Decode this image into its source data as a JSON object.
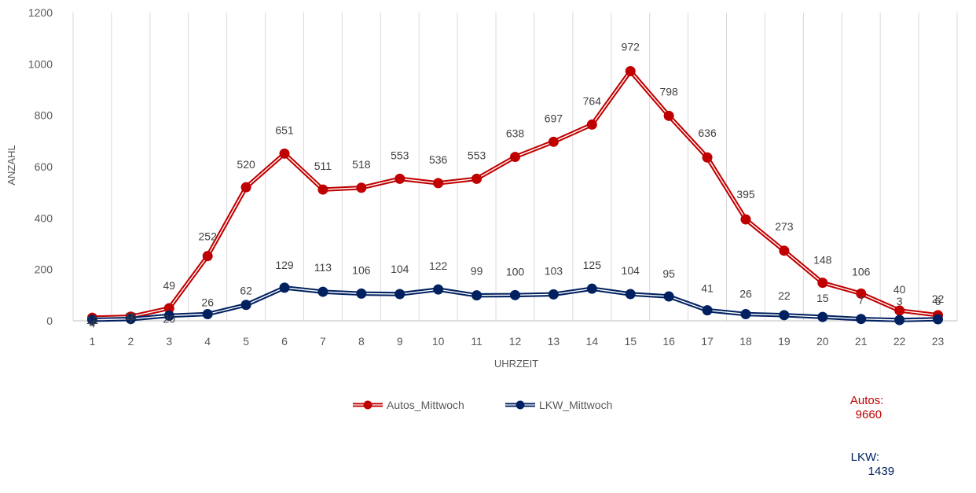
{
  "chart_data": {
    "type": "line",
    "title": "",
    "xlabel": "UHRZEIT",
    "ylabel": "ANZAHL",
    "ylim": [
      0,
      1200
    ],
    "yticks": [
      0,
      200,
      400,
      600,
      800,
      1000,
      1200
    ],
    "grid": "vertical",
    "legend": "bottom-center",
    "x": [
      1,
      2,
      3,
      4,
      5,
      6,
      7,
      8,
      9,
      10,
      11,
      12,
      13,
      14,
      15,
      16,
      17,
      18,
      19,
      20,
      21,
      22,
      23
    ],
    "series": [
      {
        "name": "Autos_Mittwoch",
        "color": "#C00000",
        "values": [
          12,
          16,
          49,
          252,
          520,
          651,
          511,
          518,
          553,
          536,
          553,
          638,
          697,
          764,
          972,
          798,
          636,
          395,
          273,
          148,
          106,
          40,
          22
        ]
      },
      {
        "name": "LKW_Mittwoch",
        "color": "#002060",
        "values": [
          4,
          7,
          20,
          26,
          62,
          129,
          113,
          106,
          104,
          122,
          99,
          100,
          103,
          125,
          104,
          95,
          41,
          26,
          22,
          15,
          7,
          3,
          6
        ]
      }
    ]
  },
  "totals": [
    {
      "label": "Autos:",
      "value": "9660",
      "color": "#C00000"
    },
    {
      "label": "LKW:",
      "value": "1439",
      "color": "#002060"
    }
  ]
}
